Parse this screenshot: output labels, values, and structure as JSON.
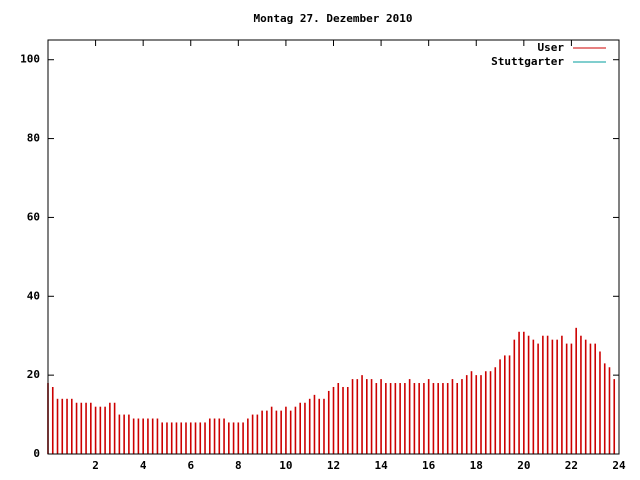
{
  "chart_data": {
    "type": "impulse",
    "title": "Montag 27. Dezember 2010",
    "x": [
      0.0,
      0.2,
      0.4,
      0.6,
      0.8,
      1.0,
      1.2,
      1.4,
      1.6,
      1.8,
      2.0,
      2.2,
      2.4,
      2.6,
      2.8,
      3.0,
      3.2,
      3.4,
      3.6,
      3.8,
      4.0,
      4.2,
      4.4,
      4.6,
      4.8,
      5.0,
      5.2,
      5.4,
      5.6,
      5.8,
      6.0,
      6.2,
      6.4,
      6.6,
      6.8,
      7.0,
      7.2,
      7.4,
      7.6,
      7.8,
      8.0,
      8.2,
      8.4,
      8.6,
      8.8,
      9.0,
      9.2,
      9.4,
      9.6,
      9.8,
      10.0,
      10.2,
      10.4,
      10.6,
      10.8,
      11.0,
      11.2,
      11.4,
      11.6,
      11.8,
      12.0,
      12.2,
      12.4,
      12.6,
      12.8,
      13.0,
      13.2,
      13.4,
      13.6,
      13.8,
      14.0,
      14.2,
      14.4,
      14.6,
      14.8,
      15.0,
      15.2,
      15.4,
      15.6,
      15.8,
      16.0,
      16.2,
      16.4,
      16.6,
      16.8,
      17.0,
      17.2,
      17.4,
      17.6,
      17.8,
      18.0,
      18.2,
      18.4,
      18.6,
      18.8,
      19.0,
      19.2,
      19.4,
      19.6,
      19.8,
      20.0,
      20.2,
      20.4,
      20.6,
      20.8,
      21.0,
      21.2,
      21.4,
      21.6,
      21.8,
      22.0,
      22.2,
      22.4,
      22.6,
      22.8,
      23.0,
      23.2,
      23.4,
      23.6,
      23.8
    ],
    "series": [
      {
        "name": "User",
        "color": "#cc0000",
        "values": [
          18,
          17,
          14,
          14,
          14,
          14,
          13,
          13,
          13,
          13,
          12,
          12,
          12,
          13,
          13,
          10,
          10,
          10,
          9,
          9,
          9,
          9,
          9,
          9,
          8,
          8,
          8,
          8,
          8,
          8,
          8,
          8,
          8,
          8,
          9,
          9,
          9,
          9,
          8,
          8,
          8,
          8,
          9,
          10,
          10,
          11,
          11,
          12,
          11,
          11,
          12,
          11,
          12,
          13,
          13,
          14,
          15,
          14,
          14,
          16,
          17,
          18,
          17,
          17,
          19,
          19,
          20,
          19,
          19,
          18,
          19,
          18,
          18,
          18,
          18,
          18,
          19,
          18,
          18,
          18,
          19,
          18,
          18,
          18,
          18,
          19,
          18,
          19,
          20,
          21,
          20,
          20,
          21,
          21,
          22,
          24,
          25,
          25,
          29,
          31,
          31,
          30,
          29,
          28,
          30,
          30,
          29,
          29,
          30,
          28,
          28,
          32,
          30,
          29,
          28,
          28,
          26,
          23,
          22,
          19
        ]
      },
      {
        "name": "Stuttgarter",
        "color": "#009e9e"
      }
    ],
    "xlim": [
      0,
      24
    ],
    "xticks": [
      2,
      4,
      6,
      8,
      10,
      12,
      14,
      16,
      18,
      20,
      22,
      24
    ],
    "ylim": [
      0,
      105
    ],
    "yticks": [
      0,
      20,
      40,
      60,
      80,
      100
    ],
    "legend": "top-right"
  }
}
